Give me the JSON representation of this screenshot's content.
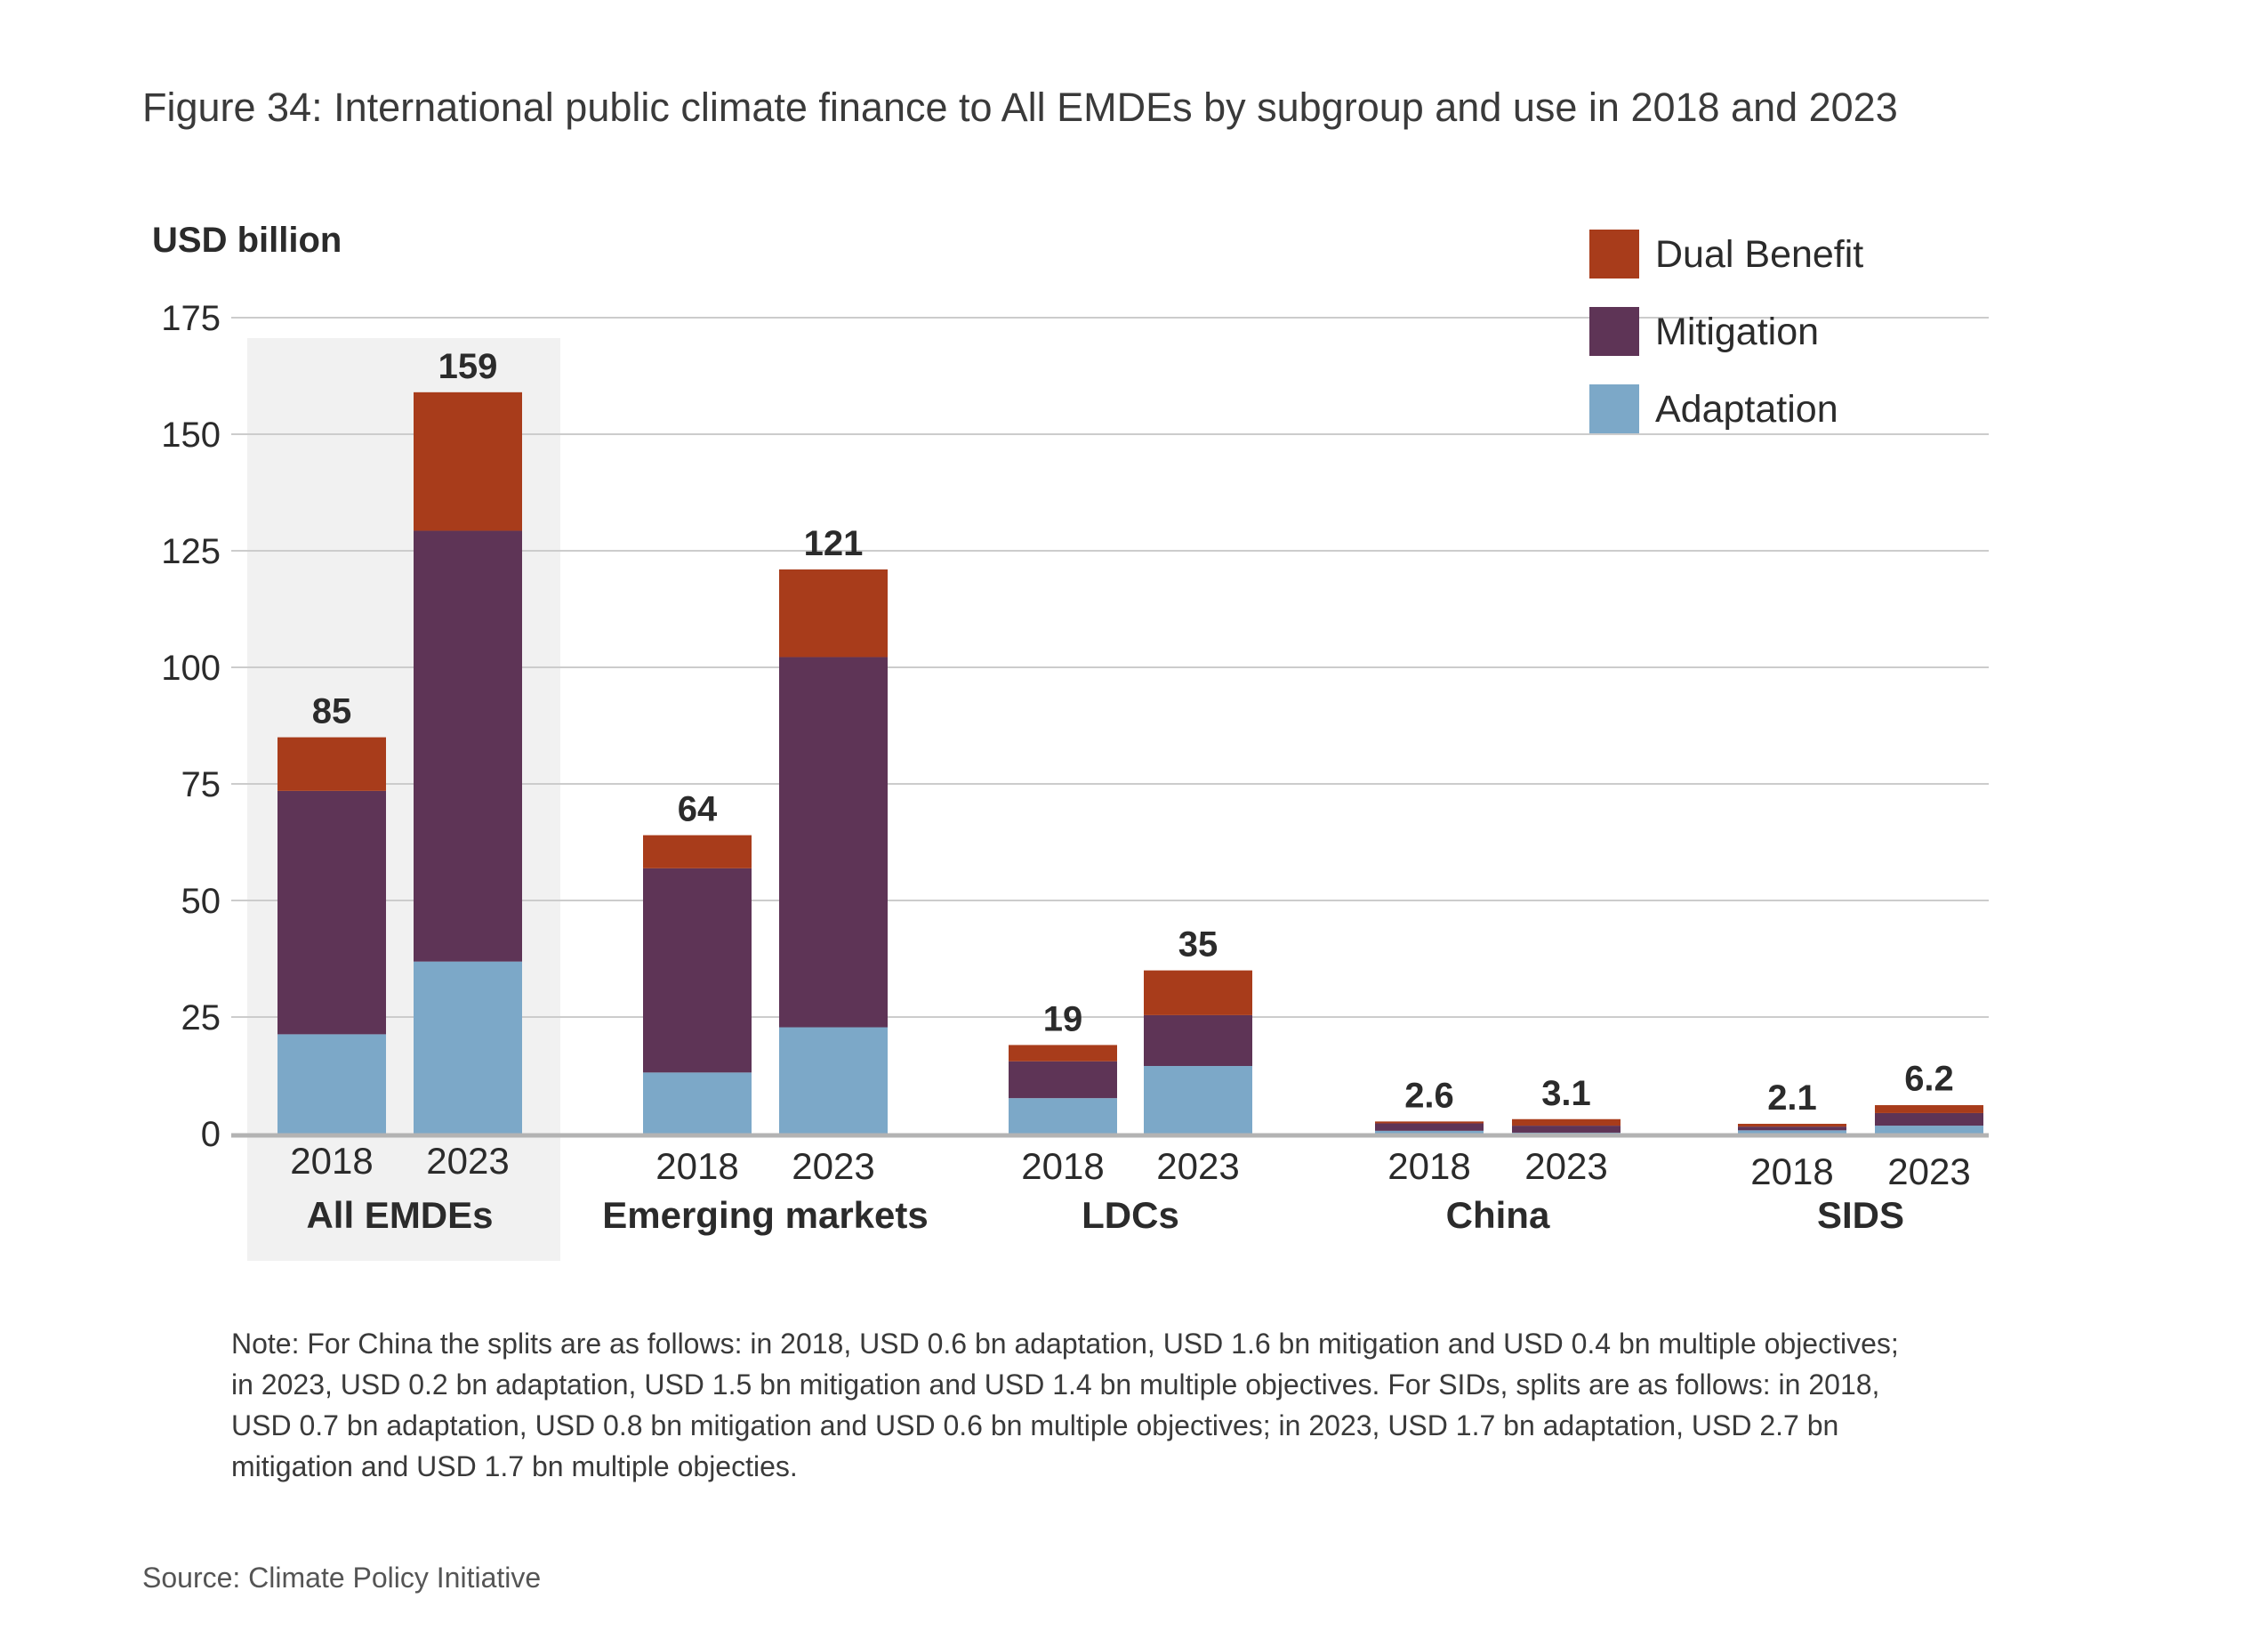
{
  "figure": {
    "title": "Figure 34: International public climate finance to All EMDEs by subgroup and use in 2018 and 2023",
    "note": "Note: For China the splits are as follows: in 2018, USD 0.6 bn adaptation, USD 1.6 bn mitigation and USD 0.4 bn multiple objectives; in 2023, USD 0.2 bn adaptation, USD 1.5 bn mitigation and USD 1.4 bn multiple objectives. For SIDs, splits are as follows: in 2018, USD 0.7 bn adaptation, USD 0.8 bn mitigation and USD 0.6 bn multiple objectives; in 2023, USD 1.7 bn adaptation, USD 2.7 bn mitigation and USD 1.7 bn multiple objecties.",
    "source": "Source: Climate Policy Initiative"
  },
  "colors": {
    "dual_benefit": "#a83c1b",
    "mitigation": "#5e3456",
    "adaptation": "#7ca8c8",
    "highlight_band": "#f1f1f1",
    "gridline": "#cccccc",
    "baseline": "#b3b3b3"
  },
  "chart_data": {
    "type": "bar",
    "stacked": true,
    "title": "Figure 34: International public climate finance to All EMDEs by subgroup and use in 2018 and 2023",
    "xlabel": "",
    "ylabel": "USD billion",
    "ylim": [
      0,
      175
    ],
    "yticks": [
      0,
      25,
      50,
      75,
      100,
      125,
      150,
      175
    ],
    "grid": true,
    "legend_position": "top-right",
    "highlighted_group": "All EMDEs",
    "groups": [
      "All EMDEs",
      "Emerging markets",
      "LDCs",
      "China",
      "SIDS"
    ],
    "categories": [
      {
        "group": "All EMDEs",
        "year": "2018",
        "total_label": "85"
      },
      {
        "group": "All EMDEs",
        "year": "2023",
        "total_label": "159"
      },
      {
        "group": "Emerging markets",
        "year": "2018",
        "total_label": "64"
      },
      {
        "group": "Emerging markets",
        "year": "2023",
        "total_label": "121"
      },
      {
        "group": "LDCs",
        "year": "2018",
        "total_label": "19"
      },
      {
        "group": "LDCs",
        "year": "2023",
        "total_label": "35"
      },
      {
        "group": "China",
        "year": "2018",
        "total_label": "2.6"
      },
      {
        "group": "China",
        "year": "2023",
        "total_label": "3.1"
      },
      {
        "group": "SIDS",
        "year": "2018",
        "total_label": "2.1"
      },
      {
        "group": "SIDS",
        "year": "2023",
        "total_label": "6.2"
      }
    ],
    "series": [
      {
        "name": "Adaptation",
        "key": "adaptation",
        "values": [
          21.3,
          36.9,
          13.1,
          22.8,
          7.6,
          14.5,
          0.6,
          0.2,
          0.7,
          1.7
        ]
      },
      {
        "name": "Mitigation",
        "key": "mitigation",
        "values": [
          52.2,
          92.4,
          43.8,
          79.4,
          7.9,
          10.9,
          1.6,
          1.5,
          0.8,
          2.7
        ]
      },
      {
        "name": "Dual Benefit",
        "key": "dual_benefit",
        "values": [
          11.5,
          29.7,
          7.1,
          18.8,
          3.5,
          9.6,
          0.4,
          1.4,
          0.6,
          1.7
        ]
      }
    ],
    "totals": [
      85,
      159,
      64,
      121,
      19,
      35,
      2.6,
      3.1,
      2.1,
      6.2
    ],
    "legend": [
      "Dual Benefit",
      "Mitigation",
      "Adaptation"
    ]
  }
}
